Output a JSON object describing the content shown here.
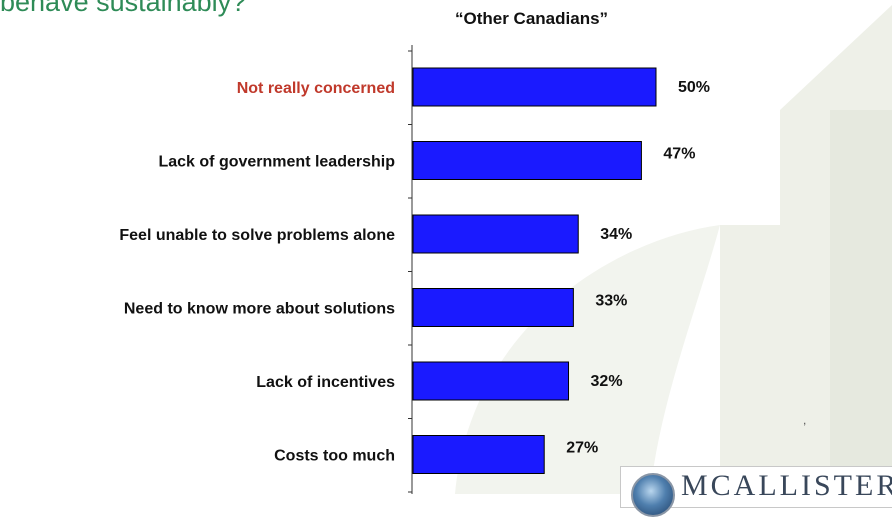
{
  "slide": {
    "heading": "behave sustainably?",
    "subtitle": "“Other Canadians”",
    "logo_text": "MCALLISTER"
  },
  "colors": {
    "bar_fill": "#1a1aff",
    "bar_outline": "#000000",
    "heading": "#2e8b57",
    "highlight_label": "#c0392b",
    "label": "#111111",
    "watermark": "#ecefe6"
  },
  "chart_data": {
    "type": "bar",
    "orientation": "horizontal",
    "title": "“Other Canadians”",
    "categories": [
      "Not really concerned",
      "Lack of government leadership",
      "Feel unable to solve problems alone",
      "Need to know more about solutions",
      "Lack of incentives",
      "Costs too much"
    ],
    "values": [
      50,
      47,
      34,
      33,
      32,
      27
    ],
    "value_labels": [
      "50%",
      "47%",
      "34%",
      "33%",
      "32%",
      "27%"
    ],
    "highlighted_category": "Not really concerned",
    "xlim": [
      0,
      100
    ],
    "grid": false,
    "legend": "none"
  }
}
